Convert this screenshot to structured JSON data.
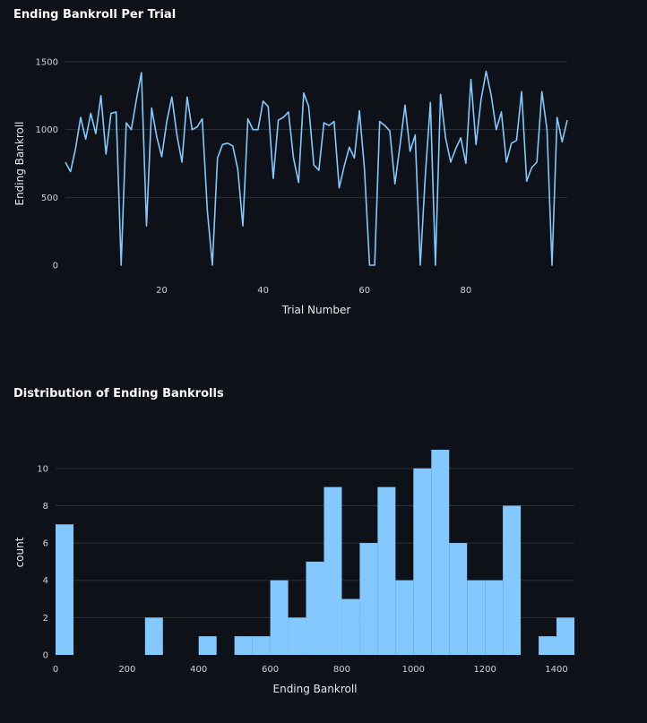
{
  "chart_data": [
    {
      "type": "line",
      "title": "Ending Bankroll Per Trial",
      "xlabel": "Trial Number",
      "ylabel": "Ending Bankroll",
      "xlim": [
        1,
        100
      ],
      "ylim": [
        0,
        1500
      ],
      "x_ticks": [
        20,
        40,
        60,
        80
      ],
      "y_ticks": [
        0,
        500,
        1000,
        1500
      ],
      "grid": "horizontal",
      "color": "#83c9ff",
      "x": [
        1,
        2,
        3,
        4,
        5,
        6,
        7,
        8,
        9,
        10,
        11,
        12,
        13,
        14,
        15,
        16,
        17,
        18,
        19,
        20,
        21,
        22,
        23,
        24,
        25,
        26,
        27,
        28,
        29,
        30,
        31,
        32,
        33,
        34,
        35,
        36,
        37,
        38,
        39,
        40,
        41,
        42,
        43,
        44,
        45,
        46,
        47,
        48,
        49,
        50,
        51,
        52,
        53,
        54,
        55,
        56,
        57,
        58,
        59,
        60,
        61,
        62,
        63,
        64,
        65,
        66,
        67,
        68,
        69,
        70,
        71,
        72,
        73,
        74,
        75,
        76,
        77,
        78,
        79,
        80,
        81,
        82,
        83,
        84,
        85,
        86,
        87,
        88,
        89,
        90,
        91,
        92,
        93,
        94,
        95,
        96,
        97,
        98,
        99,
        100
      ],
      "y": [
        760,
        690,
        860,
        1090,
        930,
        1120,
        970,
        1250,
        820,
        1120,
        1130,
        0,
        1050,
        1000,
        1220,
        1420,
        290,
        1160,
        950,
        800,
        1060,
        1240,
        960,
        760,
        1240,
        1000,
        1020,
        1080,
        400,
        0,
        790,
        890,
        900,
        880,
        710,
        290,
        1080,
        1000,
        1000,
        1210,
        1170,
        640,
        1070,
        1090,
        1130,
        790,
        610,
        1270,
        1170,
        740,
        700,
        1050,
        1030,
        1060,
        570,
        730,
        870,
        790,
        1140,
        710,
        0,
        0,
        1060,
        1030,
        990,
        600,
        880,
        1180,
        840,
        960,
        0,
        660,
        1200,
        0,
        1260,
        940,
        760,
        860,
        940,
        750,
        1370,
        890,
        1220,
        1430,
        1250,
        1000,
        1130,
        760,
        900,
        920,
        1280,
        620,
        720,
        760,
        1280,
        1000,
        0,
        1090,
        910,
        1070
      ]
    },
    {
      "type": "bar",
      "subtype": "histogram",
      "title": "Distribution of Ending Bankrolls",
      "xlabel": "Ending Bankroll",
      "ylabel": "count",
      "xlim": [
        0,
        1450
      ],
      "ylim": [
        0,
        11
      ],
      "x_ticks": [
        0,
        200,
        400,
        600,
        800,
        1000,
        1200,
        1400
      ],
      "y_ticks": [
        0,
        2,
        4,
        6,
        8,
        10
      ],
      "grid": "horizontal",
      "color": "#83c9ff",
      "bin_width": 50,
      "bin_starts": [
        0,
        50,
        100,
        150,
        200,
        250,
        300,
        350,
        400,
        450,
        500,
        550,
        600,
        650,
        700,
        750,
        800,
        850,
        900,
        950,
        1000,
        1050,
        1100,
        1150,
        1200,
        1250,
        1300,
        1350,
        1400
      ],
      "counts": [
        7,
        0,
        0,
        0,
        0,
        2,
        0,
        0,
        1,
        0,
        1,
        1,
        4,
        2,
        5,
        9,
        3,
        6,
        9,
        4,
        10,
        11,
        6,
        4,
        4,
        8,
        0,
        1,
        2
      ]
    }
  ]
}
